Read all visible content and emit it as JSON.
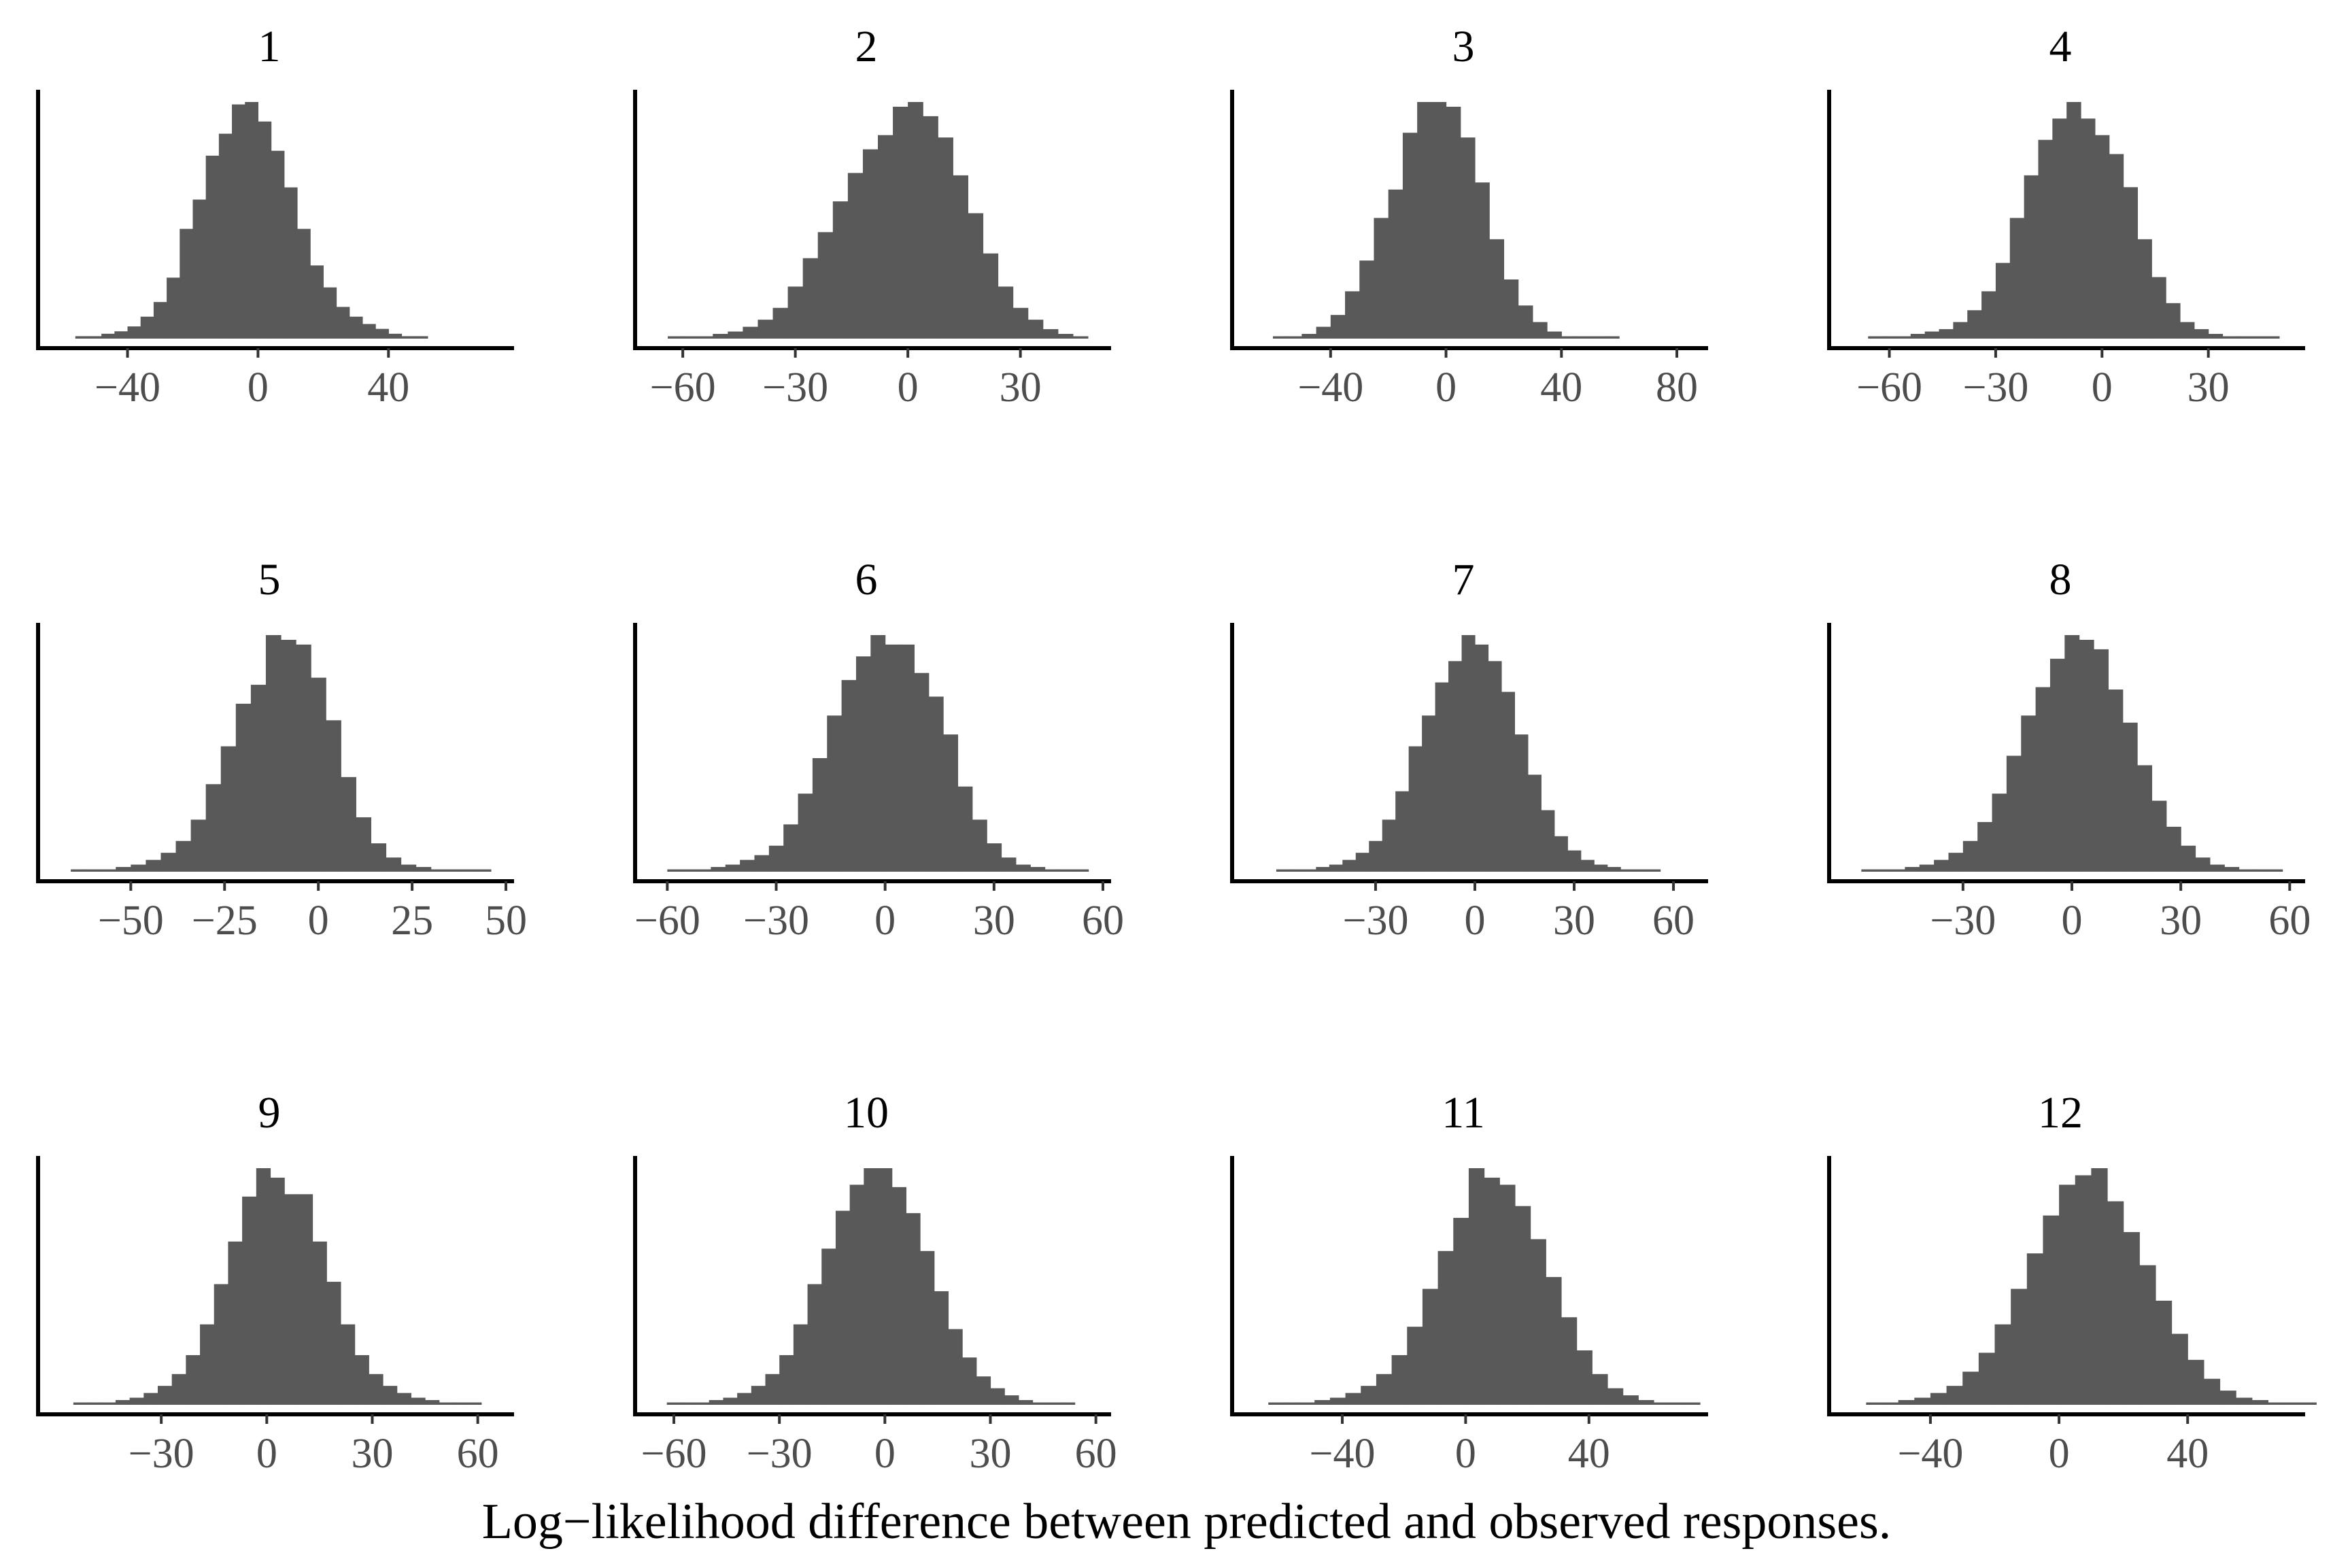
{
  "chart_data": {
    "type": "bar",
    "subtype": "histogram-facets",
    "xlabel": "Log−likelihood difference between predicted and observed responses.",
    "ylabel": "",
    "bar_color": "#595959",
    "grid": false,
    "panels": [
      {
        "title": "1",
        "xlim": [
          -62,
          76
        ],
        "ticks": [
          -40,
          0,
          40
        ],
        "tick_labels": [
          "−40",
          "0",
          "40"
        ],
        "bin_start": -56,
        "bin_width": 4,
        "counts": [
          1,
          1,
          2,
          3,
          5,
          9,
          15,
          25,
          45,
          57,
          75,
          84,
          96,
          97,
          89,
          77,
          62,
          45,
          30,
          21,
          13,
          9,
          6,
          4,
          2,
          1,
          1
        ]
      },
      {
        "title": "2",
        "xlim": [
          -68,
          52
        ],
        "ticks": [
          -60,
          -30,
          0,
          30
        ],
        "tick_labels": [
          "−60",
          "−30",
          "0",
          "30"
        ],
        "bin_start": -64,
        "bin_width": 4,
        "counts": [
          1,
          1,
          1,
          2,
          3,
          5,
          8,
          13,
          22,
          34,
          45,
          58,
          70,
          80,
          86,
          98,
          100,
          94,
          85,
          69,
          53,
          36,
          22,
          13,
          8,
          4,
          2,
          1
        ]
      },
      {
        "title": "3",
        "xlim": [
          -68,
          88
        ],
        "ticks": [
          -40,
          0,
          40,
          80
        ],
        "tick_labels": [
          "−40",
          "0",
          "40",
          "80"
        ],
        "bin_start": -60,
        "bin_width": 5,
        "counts": [
          1,
          1,
          2,
          5,
          10,
          20,
          33,
          51,
          63,
          87,
          100,
          100,
          98,
          85,
          66,
          42,
          25,
          14,
          7,
          3,
          1,
          1,
          1,
          1
        ]
      },
      {
        "title": "4",
        "xlim": [
          -72,
          55
        ],
        "ticks": [
          -60,
          -30,
          0,
          30
        ],
        "tick_labels": [
          "−60",
          "−30",
          "0",
          "30"
        ],
        "bin_start": -66,
        "bin_width": 4,
        "counts": [
          1,
          1,
          1,
          2,
          3,
          4,
          7,
          12,
          20,
          32,
          51,
          69,
          84,
          93,
          100,
          93,
          86,
          78,
          64,
          42,
          26,
          15,
          7,
          4,
          2,
          1,
          1,
          1,
          1
        ]
      },
      {
        "title": "5",
        "xlim": [
          -70,
          50
        ],
        "ticks": [
          -50,
          -25,
          0,
          25,
          50
        ],
        "tick_labels": [
          "−50",
          "−25",
          "0",
          "25",
          "50"
        ],
        "bin_start": -66,
        "bin_width": 4,
        "counts": [
          1,
          1,
          1,
          2,
          3,
          5,
          8,
          13,
          22,
          37,
          53,
          71,
          79,
          100,
          98,
          96,
          82,
          64,
          40,
          23,
          12,
          6,
          3,
          2,
          1,
          1,
          1,
          1
        ]
      },
      {
        "title": "6",
        "xlim": [
          -64,
          60
        ],
        "ticks": [
          -60,
          -30,
          0,
          30,
          60
        ],
        "tick_labels": [
          "−60",
          "−30",
          "0",
          "30",
          "60"
        ],
        "bin_start": -60,
        "bin_width": 4,
        "counts": [
          1,
          1,
          1,
          2,
          3,
          5,
          7,
          11,
          20,
          33,
          48,
          66,
          81,
          91,
          100,
          96,
          96,
          84,
          74,
          58,
          36,
          22,
          12,
          6,
          3,
          2,
          1,
          1,
          1
        ]
      },
      {
        "title": "7",
        "xlim": [
          -68,
          68
        ],
        "ticks": [
          -30,
          0,
          30,
          60
        ],
        "tick_labels": [
          "−30",
          "0",
          "30",
          "60"
        ],
        "bin_start": -60,
        "bin_width": 4,
        "counts": [
          1,
          1,
          1,
          2,
          3,
          5,
          8,
          13,
          22,
          34,
          53,
          66,
          80,
          89,
          100,
          96,
          89,
          76,
          58,
          41,
          26,
          15,
          9,
          5,
          3,
          2,
          1,
          1,
          1
        ]
      },
      {
        "title": "8",
        "xlim": [
          -62,
          62
        ],
        "ticks": [
          -30,
          0,
          30,
          60
        ],
        "tick_labels": [
          "−30",
          "0",
          "30",
          "60"
        ],
        "bin_start": -58,
        "bin_width": 4,
        "counts": [
          1,
          1,
          1,
          2,
          3,
          5,
          8,
          13,
          21,
          33,
          49,
          66,
          78,
          90,
          100,
          98,
          94,
          77,
          63,
          45,
          30,
          19,
          11,
          6,
          3,
          2,
          1,
          1,
          1
        ]
      },
      {
        "title": "9",
        "xlim": [
          -60,
          68
        ],
        "ticks": [
          -30,
          0,
          30,
          60
        ],
        "tick_labels": [
          "−30",
          "0",
          "30",
          "60"
        ],
        "bin_start": -55,
        "bin_width": 4,
        "counts": [
          1,
          1,
          1,
          2,
          3,
          5,
          8,
          13,
          21,
          34,
          51,
          69,
          88,
          100,
          96,
          89,
          89,
          69,
          52,
          34,
          21,
          13,
          8,
          5,
          3,
          2,
          1,
          1,
          1
        ]
      },
      {
        "title": "10",
        "xlim": [
          -66,
          62
        ],
        "ticks": [
          -60,
          -30,
          0,
          30,
          60
        ],
        "tick_labels": [
          "−60",
          "−30",
          "0",
          "30",
          "60"
        ],
        "bin_start": -62,
        "bin_width": 4,
        "counts": [
          1,
          1,
          1,
          2,
          3,
          5,
          8,
          13,
          21,
          34,
          51,
          66,
          82,
          93,
          100,
          100,
          92,
          81,
          65,
          48,
          32,
          20,
          12,
          7,
          4,
          2,
          1,
          1,
          1
        ]
      },
      {
        "title": "11",
        "xlim": [
          -70,
          76
        ],
        "ticks": [
          -40,
          0,
          40
        ],
        "tick_labels": [
          "−40",
          "0",
          "40"
        ],
        "bin_start": -64,
        "bin_width": 5,
        "counts": [
          1,
          1,
          1,
          2,
          3,
          5,
          8,
          13,
          21,
          33,
          49,
          65,
          79,
          100,
          96,
          93,
          84,
          70,
          54,
          37,
          23,
          13,
          7,
          4,
          2,
          1,
          1,
          1
        ]
      },
      {
        "title": "12",
        "xlim": [
          -66,
          74
        ],
        "ticks": [
          -40,
          0,
          40
        ],
        "tick_labels": [
          "−40",
          "0",
          "40"
        ],
        "bin_start": -60,
        "bin_width": 5,
        "counts": [
          1,
          1,
          2,
          3,
          5,
          8,
          14,
          22,
          34,
          49,
          64,
          80,
          93,
          97,
          100,
          86,
          73,
          59,
          44,
          30,
          19,
          11,
          6,
          3,
          2,
          1,
          1,
          1
        ]
      }
    ]
  }
}
